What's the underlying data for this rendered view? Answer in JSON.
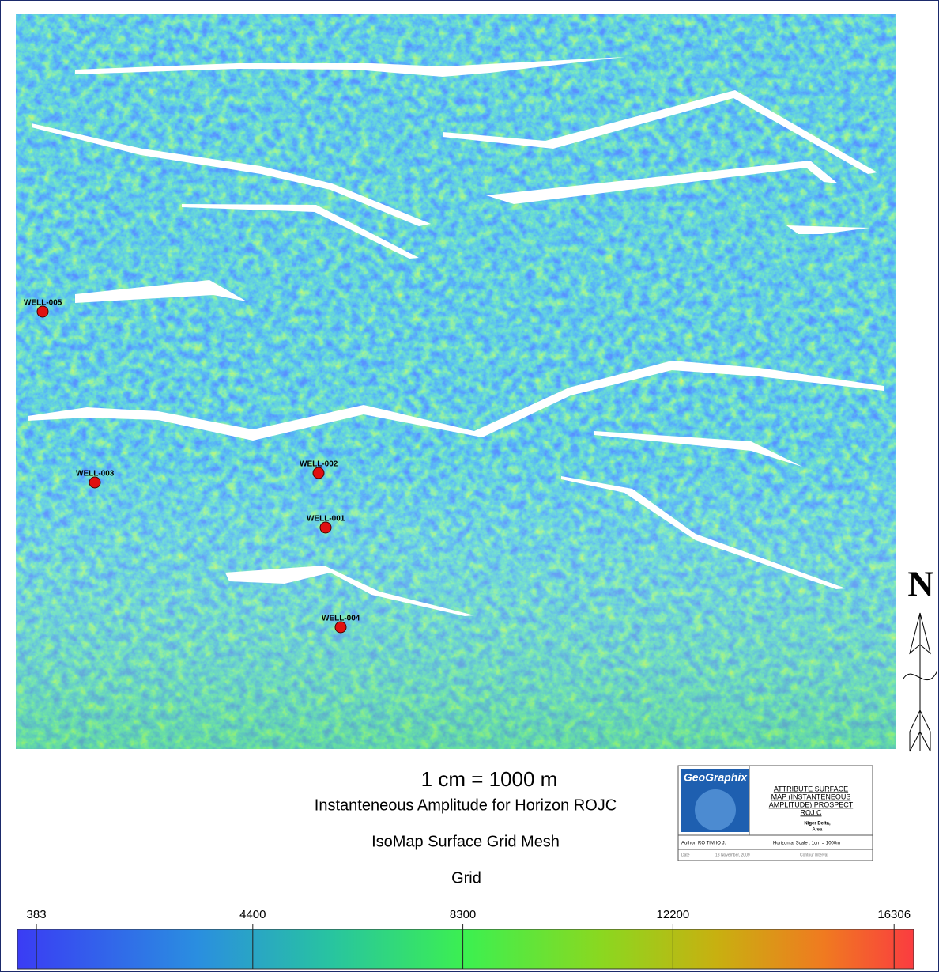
{
  "wells": [
    "WELL-005",
    "WELL-003",
    "WELL-002",
    "WELL-001",
    "WELL-004"
  ],
  "north": "N",
  "scale": "1 cm = 1000 m",
  "titles": [
    "Instanteneous Amplitude for Horizon ROJC",
    "IsoMap Surface Grid Mesh",
    "Grid"
  ],
  "title_block": {
    "logo": "GeoGraphix",
    "title": [
      "ATTRIBUTE SURFACE",
      "MAP (INSTANTENEOUS",
      "AMPLITUDE) PROSPECT",
      "ROJ C"
    ],
    "location": [
      "Niger Delta,",
      "Area"
    ],
    "author": "Author: RO TIM IO J.",
    "horizontal_scale": "Horizontal Scale : 1cm = 1000m",
    "date_label": "Date",
    "date": "18 November, 2009",
    "contour": "Contour Interval"
  },
  "colorbar": {
    "lim": [
      30,
      16670
    ],
    "ticks": [
      383,
      4400,
      8300,
      12200,
      16306
    ]
  }
}
